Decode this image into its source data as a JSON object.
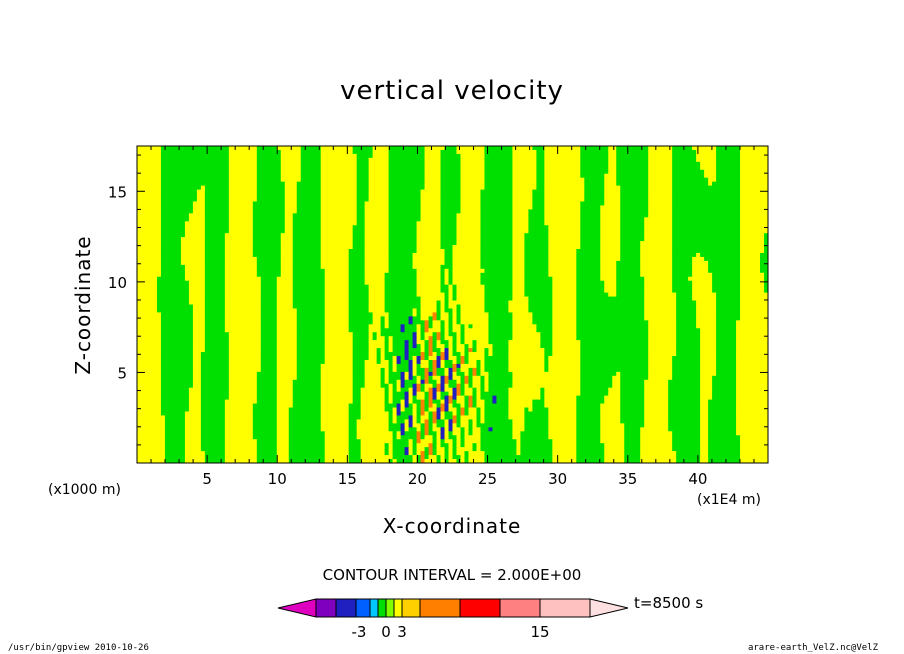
{
  "chart_data": {
    "type": "heatmap",
    "title": "vertical velocity",
    "xlabel": "X-coordinate",
    "ylabel": "Z-coordinate",
    "x_unit": "(x1E4 m)",
    "y_unit": "(x1000 m)",
    "x_ticks": [
      5,
      10,
      15,
      20,
      25,
      30,
      35,
      40
    ],
    "y_ticks": [
      5,
      10,
      15
    ],
    "xlim": [
      0,
      45
    ],
    "ylim": [
      0,
      17.5
    ],
    "contour_interval": "CONTOUR INTERVAL = 2.000E+00",
    "time_label": "t=8500 s",
    "colorbar": {
      "tick_labels": [
        "-3",
        "0",
        "3",
        "15"
      ],
      "colors": [
        "#e000c0",
        "#8000c0",
        "#2020c0",
        "#0060ff",
        "#00c8ff",
        "#00e000",
        "#80ff00",
        "#ffff00",
        "#ffd000",
        "#ff8000",
        "#ff0000",
        "#ff8080",
        "#ffc0c0",
        "#ffe0e0"
      ]
    },
    "field_colors": {
      "positive_weak": "#ffff00",
      "negative_weak": "#00e000",
      "positive_strong": "#ff8000",
      "negative_strong": "#2020c0"
    }
  },
  "footer": {
    "left": "/usr/bin/gpview   2010-10-26",
    "right": "arare-earth_VelZ.nc@VelZ"
  }
}
